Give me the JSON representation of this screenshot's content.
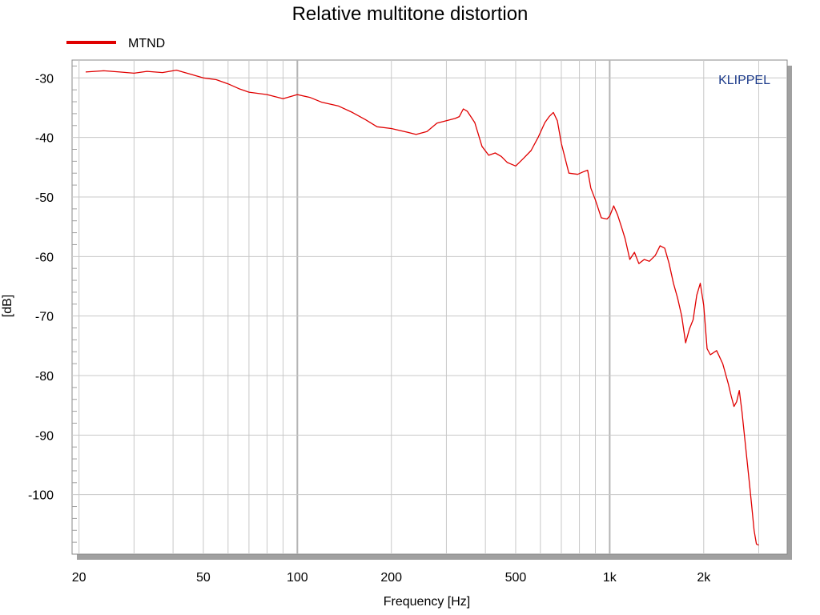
{
  "chart_data": {
    "type": "line",
    "title": "Relative multitone distortion",
    "xlabel": "Frequency [Hz]",
    "ylabel": "[dB]",
    "x_scale": "log",
    "xlim": [
      19,
      3700
    ],
    "ylim": [
      -110,
      -27
    ],
    "grid": true,
    "legend_position": "top-left",
    "watermark": "KLIPPEL",
    "colors": {
      "series": "#e00000",
      "watermark": "#1f3d8c",
      "grid": "#c8c8c8"
    },
    "x_ticks": [
      {
        "value": 20,
        "label": "20"
      },
      {
        "value": 50,
        "label": "50"
      },
      {
        "value": 100,
        "label": "100"
      },
      {
        "value": 200,
        "label": "200"
      },
      {
        "value": 500,
        "label": "500"
      },
      {
        "value": 1000,
        "label": "1k"
      },
      {
        "value": 2000,
        "label": "2k"
      }
    ],
    "y_ticks": [
      {
        "value": -30,
        "label": "-30"
      },
      {
        "value": -40,
        "label": "-40"
      },
      {
        "value": -50,
        "label": "-50"
      },
      {
        "value": -60,
        "label": "-60"
      },
      {
        "value": -70,
        "label": "-70"
      },
      {
        "value": -80,
        "label": "-80"
      },
      {
        "value": -90,
        "label": "-90"
      },
      {
        "value": -100,
        "label": "-100"
      }
    ],
    "series": [
      {
        "name": "MTND",
        "x": [
          21,
          24,
          27,
          30,
          33,
          37,
          41,
          45,
          50,
          55,
          60,
          65,
          70,
          80,
          90,
          100,
          110,
          120,
          135,
          150,
          165,
          180,
          200,
          220,
          240,
          260,
          280,
          300,
          320,
          330,
          340,
          350,
          370,
          390,
          410,
          430,
          450,
          470,
          500,
          530,
          560,
          590,
          620,
          640,
          660,
          680,
          700,
          740,
          790,
          820,
          850,
          870,
          900,
          940,
          980,
          1000,
          1030,
          1060,
          1090,
          1120,
          1160,
          1200,
          1240,
          1290,
          1340,
          1400,
          1450,
          1500,
          1550,
          1600,
          1650,
          1700,
          1750,
          1800,
          1850,
          1900,
          1950,
          2000,
          2050,
          2100,
          2200,
          2300,
          2400,
          2450,
          2500,
          2550,
          2600,
          2650,
          2700,
          2750,
          2800,
          2850,
          2900,
          2950,
          3000
        ],
        "y": [
          -29,
          -28.8,
          -29,
          -29.2,
          -28.9,
          -29.1,
          -28.7,
          -29.3,
          -30,
          -30.3,
          -31,
          -31.8,
          -32.4,
          -32.8,
          -33.5,
          -32.8,
          -33.3,
          -34.1,
          -34.7,
          -35.8,
          -37,
          -38.2,
          -38.5,
          -39,
          -39.5,
          -39,
          -37.6,
          -37.2,
          -36.8,
          -36.5,
          -35.2,
          -35.6,
          -37.5,
          -41.5,
          -43,
          -42.6,
          -43.2,
          -44.2,
          -44.8,
          -43.5,
          -42.2,
          -40,
          -37.5,
          -36.5,
          -35.8,
          -37.2,
          -41,
          -46,
          -46.2,
          -45.8,
          -45.5,
          -48.5,
          -50.5,
          -53.5,
          -53.7,
          -53.2,
          -51.5,
          -53,
          -55,
          -57,
          -60.5,
          -59.3,
          -61.2,
          -60.5,
          -60.8,
          -59.8,
          -58.2,
          -58.6,
          -61.2,
          -64.5,
          -67,
          -70,
          -74.5,
          -72.2,
          -70.6,
          -66.5,
          -64.5,
          -68.2,
          -75.5,
          -76.5,
          -75.8,
          -78,
          -81.5,
          -83.5,
          -85.2,
          -84.4,
          -82.5,
          -86,
          -90,
          -94,
          -98,
          -102,
          -106,
          -108.3,
          -108.5
        ]
      }
    ]
  }
}
